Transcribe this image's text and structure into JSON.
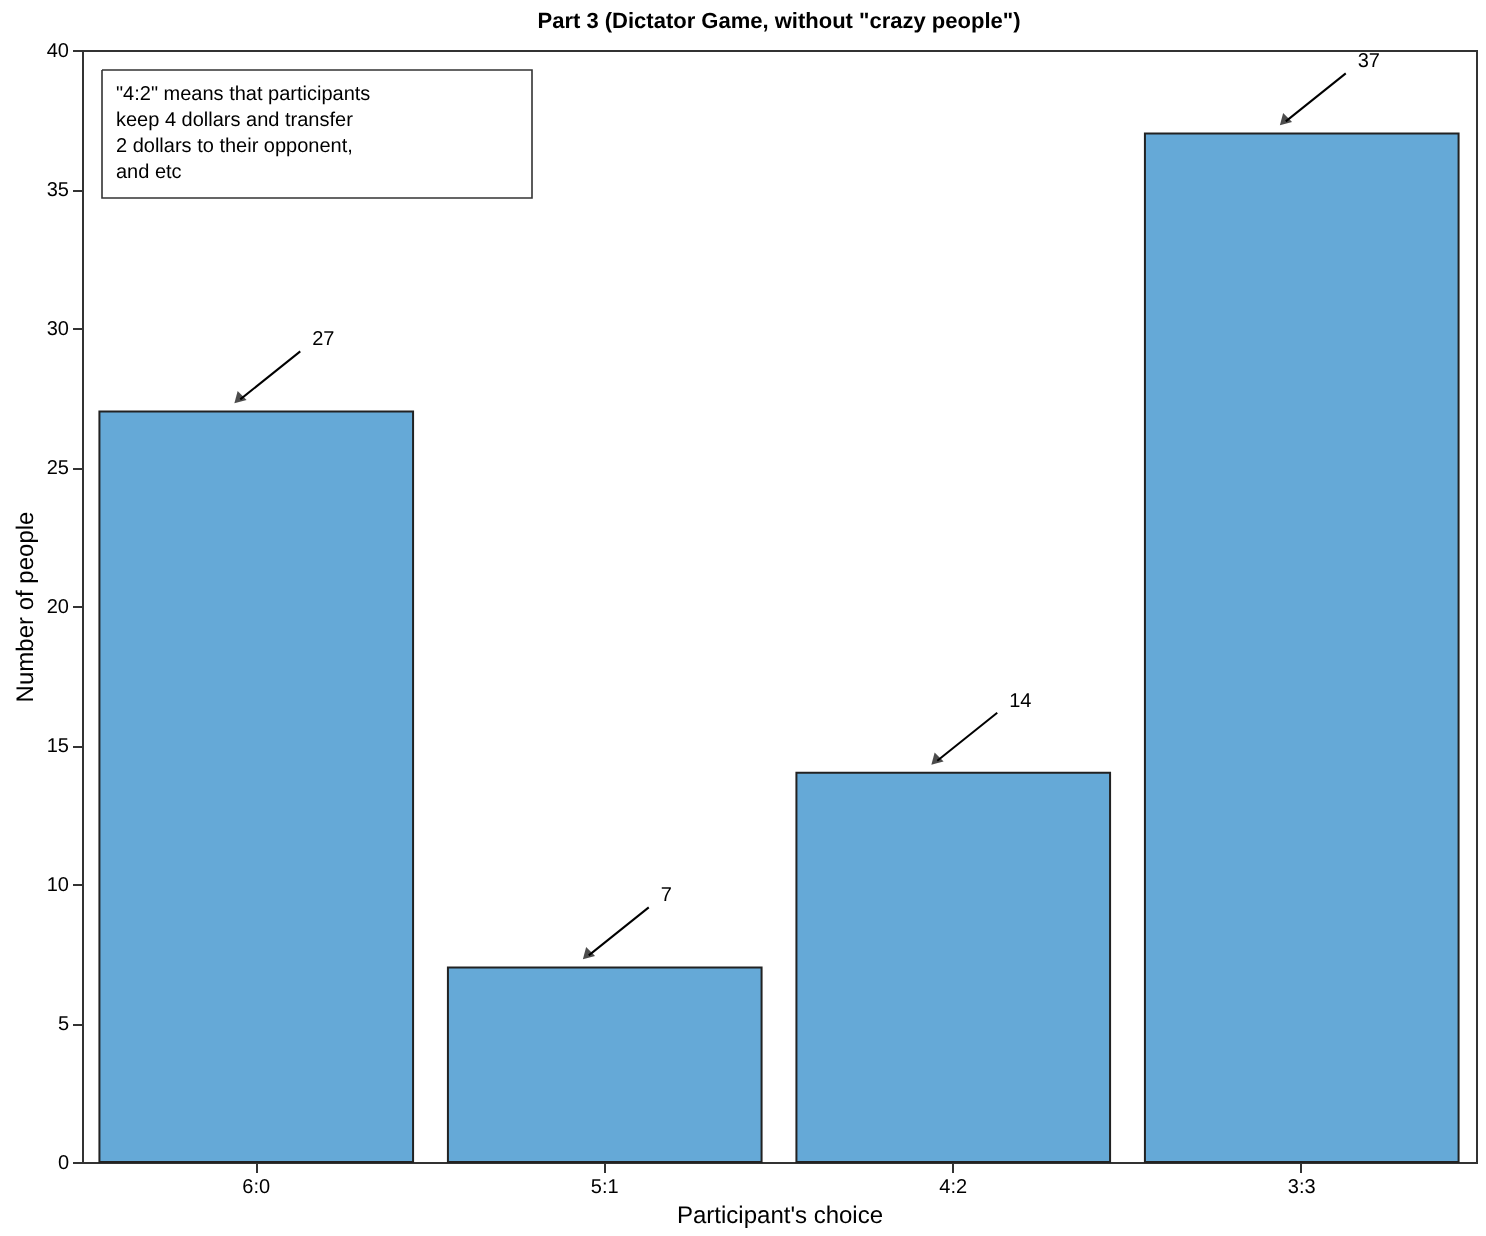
{
  "chart_data": {
    "type": "bar",
    "title": "Part 3 (Dictator Game, without \"crazy people\")",
    "xlabel": "Participant's choice",
    "ylabel": "Number of people",
    "categories": [
      "6:0",
      "5:1",
      "4:2",
      "3:3"
    ],
    "values": [
      27,
      7,
      14,
      37
    ],
    "color": "#65a9d7",
    "ylim": [
      0,
      40
    ],
    "yticks": [
      0,
      5,
      10,
      15,
      20,
      25,
      30,
      35,
      40
    ],
    "grid": false,
    "data_labels": true,
    "annotations": [
      "\"4:2\" means that participants\nkeep 4 dollars and transfer\n2 dollars to their opponent,\nand etc"
    ]
  }
}
